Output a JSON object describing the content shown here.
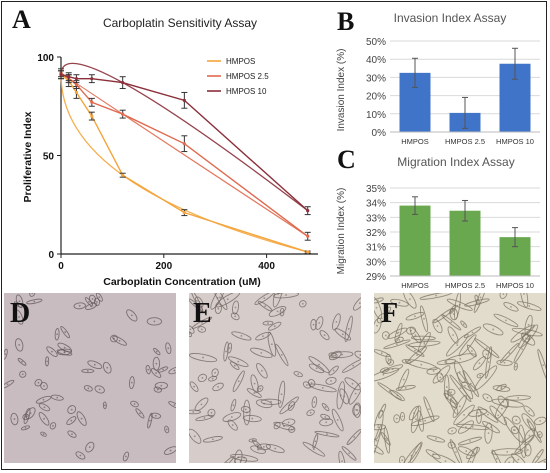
{
  "panels": {
    "A": "A",
    "B": "B",
    "C": "C",
    "D": "D",
    "E": "E",
    "F": "F"
  },
  "colors": {
    "hmpos": "#f4a53c",
    "hmpos25": "#e0694e",
    "hmpos10": "#8b2f3a",
    "blue_bar": "#3f74c8",
    "green_bar": "#6aa84f"
  },
  "chart_data": [
    {
      "type": "line",
      "title": "Carboplatin Sensitivity Assay",
      "xlabel": "Carboplatin Concentration (uM)",
      "ylabel": "Proliferative Index",
      "xlim": [
        0,
        500
      ],
      "ylim": [
        0,
        100
      ],
      "xticks": [
        "0",
        "200",
        "400"
      ],
      "xtick_values": [
        0,
        200,
        400
      ],
      "yticks": [
        "0",
        "50",
        "100"
      ],
      "ytick_values": [
        0,
        50,
        100
      ],
      "legend_position": "top-right",
      "x": [
        0,
        15,
        30,
        60,
        120,
        240,
        480
      ],
      "series": [
        {
          "name": "HMPOS",
          "color": "#f4a53c",
          "values": [
            91,
            88,
            82,
            70,
            40,
            21,
            1
          ],
          "errors": [
            2,
            3,
            3,
            2,
            1,
            1.5,
            0.5
          ]
        },
        {
          "name": "HMPOS 2.5",
          "color": "#e0694e",
          "values": [
            92,
            89,
            86,
            77,
            71,
            56,
            9
          ],
          "errors": [
            2,
            2,
            2,
            2,
            2,
            4,
            2
          ]
        },
        {
          "name": "HMPOS 10",
          "color": "#8b2f3a",
          "values": [
            91,
            90,
            89,
            89,
            87,
            78,
            22
          ],
          "errors": [
            2,
            2,
            2,
            2,
            3,
            4,
            2
          ]
        }
      ]
    },
    {
      "type": "bar",
      "title": "Invasion Index Assay",
      "ylabel": "Invasion Index (%)",
      "categories": [
        "HMPOS",
        "HMPOS 2.5",
        "HMPOS 10"
      ],
      "values": [
        32.5,
        10.5,
        37.5
      ],
      "errors": [
        8,
        8.5,
        8.5
      ],
      "ylim": [
        0,
        50
      ],
      "yticks": [
        "0%",
        "10%",
        "20%",
        "30%",
        "40%",
        "50%"
      ],
      "ytick_values": [
        0,
        10,
        20,
        30,
        40,
        50
      ],
      "color": "#3f74c8"
    },
    {
      "type": "bar",
      "title": "Migration Index Assay",
      "ylabel": "Migration Index (%)",
      "categories": [
        "HMPOS",
        "HMPOS 2.5",
        "HMPOS 10"
      ],
      "values": [
        33.8,
        33.45,
        31.65
      ],
      "errors": [
        0.6,
        0.7,
        0.65
      ],
      "ylim": [
        29,
        35
      ],
      "yticks": [
        "29%",
        "30%",
        "31%",
        "32%",
        "33%",
        "34%",
        "35%"
      ],
      "ytick_values": [
        29,
        30,
        31,
        32,
        33,
        34,
        35
      ],
      "color": "#6aa84f"
    }
  ]
}
